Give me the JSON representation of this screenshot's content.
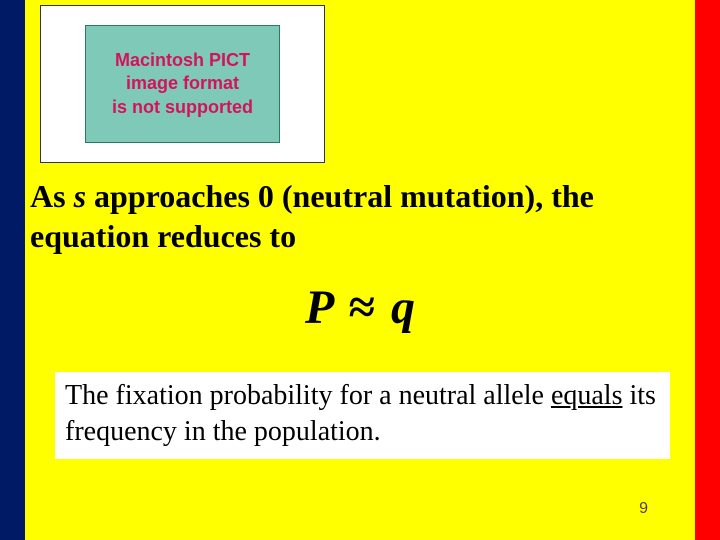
{
  "background": {
    "left_stripe_color": "#001a66",
    "center_color": "#ffff00",
    "right_stripe_color": "#ff0000"
  },
  "pict_placeholder": {
    "line1": "Macintosh PICT",
    "line2": "image format",
    "line3": "is not supported",
    "inner_bg": "#7fc9b8",
    "text_color": "#d4145a"
  },
  "main_text": {
    "prefix": "As ",
    "italic_var": "s",
    "suffix": " approaches 0 (neutral mutation), the equation reduces to"
  },
  "equation": {
    "lhs": "P",
    "symbol": "≈",
    "rhs": "q"
  },
  "conclusion": {
    "part1": "The fixation probability for a neutral allele ",
    "underlined": "equals",
    "part2": " its frequency in the population."
  },
  "page_number": "9"
}
